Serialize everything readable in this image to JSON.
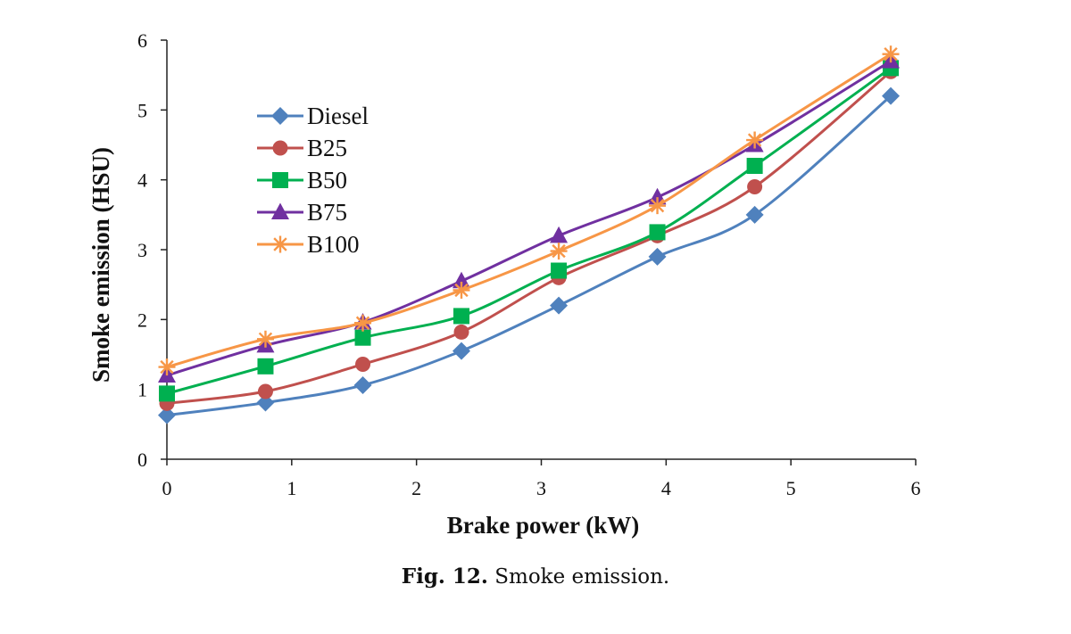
{
  "chart_data": {
    "type": "line",
    "title": "",
    "xlabel": "Brake power (kW)",
    "ylabel": "Smoke emission (HSU)",
    "xlim": [
      0,
      6
    ],
    "ylim": [
      0,
      6
    ],
    "xticks": [
      "0",
      "1",
      "2",
      "3",
      "4",
      "5",
      "6"
    ],
    "yticks": [
      "0",
      "1",
      "2",
      "3",
      "4",
      "5",
      "6"
    ],
    "x": [
      0,
      0.79,
      1.57,
      2.36,
      3.14,
      3.93,
      4.71,
      5.8
    ],
    "legend_position": "upper-left",
    "series": [
      {
        "name": "Diesel",
        "color": "#4F81BD",
        "marker": "diamond",
        "values": [
          0.63,
          0.81,
          1.06,
          1.55,
          2.2,
          2.9,
          3.5,
          5.2
        ]
      },
      {
        "name": "B25",
        "color": "#C0504D",
        "marker": "circle",
        "values": [
          0.8,
          0.97,
          1.36,
          1.82,
          2.6,
          3.2,
          3.9,
          5.55
        ]
      },
      {
        "name": "B50",
        "color": "#00B050",
        "marker": "square",
        "values": [
          0.94,
          1.33,
          1.74,
          2.05,
          2.7,
          3.25,
          4.2,
          5.6
        ]
      },
      {
        "name": "B75",
        "color": "#7030A0",
        "marker": "triangle",
        "values": [
          1.2,
          1.63,
          1.96,
          2.55,
          3.2,
          3.75,
          4.5,
          5.7
        ]
      },
      {
        "name": "B100",
        "color": "#F79646",
        "marker": "asterisk",
        "values": [
          1.32,
          1.72,
          1.95,
          2.42,
          2.98,
          3.63,
          4.57,
          5.8
        ]
      }
    ]
  },
  "caption": {
    "label": "Fig. 12.",
    "text": "Smoke emission."
  }
}
